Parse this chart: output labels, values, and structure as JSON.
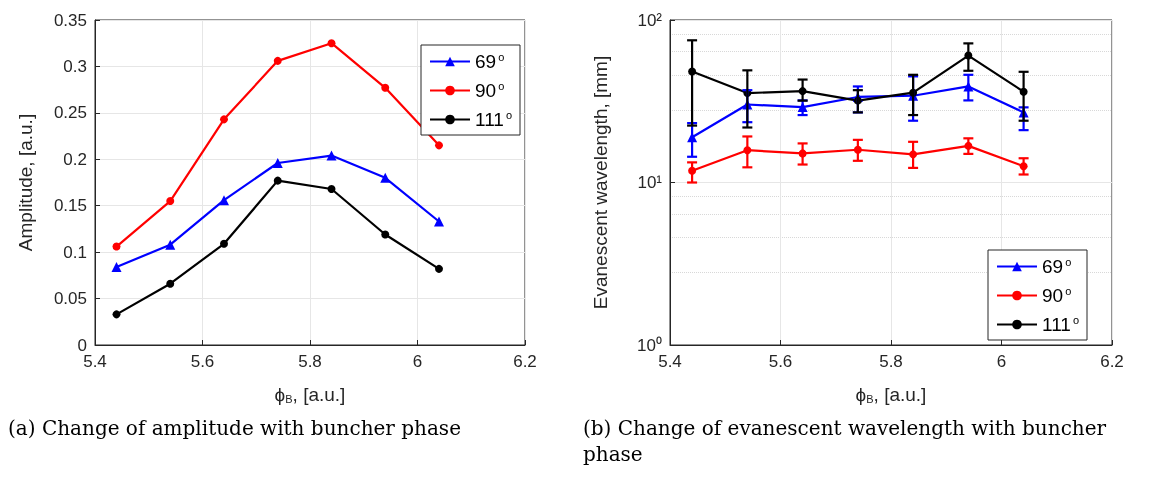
{
  "chart_data": [
    {
      "type": "line",
      "xlabel": "ϕ$_{B}$, [a.u.]",
      "ylabel": "Amplitude, [a.u.]",
      "x": [
        5.44,
        5.54,
        5.64,
        5.74,
        5.84,
        5.94,
        6.04
      ],
      "xlim": [
        5.4,
        6.2
      ],
      "xticks": [
        5.4,
        5.6,
        5.8,
        6,
        6.2
      ],
      "ylim": [
        0,
        0.35
      ],
      "yticks": [
        0,
        0.05,
        0.1,
        0.15,
        0.2,
        0.25,
        0.3,
        0.35
      ],
      "grid": true,
      "legend": "top right",
      "annotations": [
        "(a) Change of amplitude with buncher phase"
      ],
      "series": [
        {
          "name": "69$^{o}$",
          "color": "#0000ff",
          "marker": "triangle",
          "values": [
            0.084,
            0.108,
            0.156,
            0.196,
            0.204,
            0.18,
            0.133
          ]
        },
        {
          "name": "90$^{o}$",
          "color": "#ff0000",
          "marker": "circle",
          "values": [
            0.106,
            0.155,
            0.243,
            0.306,
            0.325,
            0.277,
            0.215
          ]
        },
        {
          "name": "111$^{o}$",
          "color": "#000000",
          "marker": "circle",
          "values": [
            0.033,
            0.066,
            0.109,
            0.177,
            0.168,
            0.119,
            0.082
          ]
        }
      ]
    },
    {
      "type": "line",
      "xlabel": "ϕ$_{B}$, [a.u.]",
      "ylabel": "Evanescent wavelength, [mm]",
      "x": [
        5.44,
        5.54,
        5.64,
        5.74,
        5.84,
        5.94,
        6.04
      ],
      "xlim": [
        5.4,
        6.2
      ],
      "xticks": [
        5.4,
        5.6,
        5.8,
        6,
        6.2
      ],
      "ylim": [
        1,
        100
      ],
      "yticks": [
        {
          "value": 1,
          "label": "10⁰"
        },
        {
          "value": 10,
          "label": "10¹"
        },
        {
          "value": 100,
          "label": "10²"
        }
      ],
      "log": "y",
      "grid": true,
      "legend": "bottom right",
      "annotations": [
        "(b) Change of evanescent wavelength with buncher phase"
      ],
      "series": [
        {
          "name": "69$^{o}$",
          "color": "#0000ff",
          "marker": "triangle",
          "values": [
            19.0,
            30.2,
            29.1,
            33.6,
            34.2,
            39,
            27
          ],
          "errors": [
            [
              14.4,
              23.2
            ],
            [
              23.5,
              37
            ],
            [
              26,
              32
            ],
            [
              27,
              39
            ],
            [
              24,
              45
            ],
            [
              32,
              46
            ],
            [
              21,
              29
            ]
          ]
        },
        {
          "name": "90$^{o}$",
          "color": "#ff0000",
          "marker": "circle",
          "values": [
            11.8,
            15.8,
            15.1,
            15.9,
            14.9,
            16.8,
            12.6
          ],
          "errors": [
            [
              10,
              13.3
            ],
            [
              12.4,
              19.2
            ],
            [
              12.9,
              17.4
            ],
            [
              13.6,
              18.3
            ],
            [
              12.3,
              17.8
            ],
            [
              15,
              18.7
            ],
            [
              11.2,
              14.1
            ]
          ]
        },
        {
          "name": "111$^{o}$",
          "color": "#000000",
          "marker": "circle",
          "values": [
            48.2,
            35.5,
            36.5,
            31.9,
            35.7,
            60.4,
            36.2
          ],
          "errors": [
            [
              22.4,
              75
            ],
            [
              21.8,
              49
            ],
            [
              31.9,
              43
            ],
            [
              27,
              37
            ],
            [
              26,
              46
            ],
            [
              48.7,
              71.8
            ],
            [
              24,
              48
            ]
          ]
        }
      ]
    }
  ]
}
